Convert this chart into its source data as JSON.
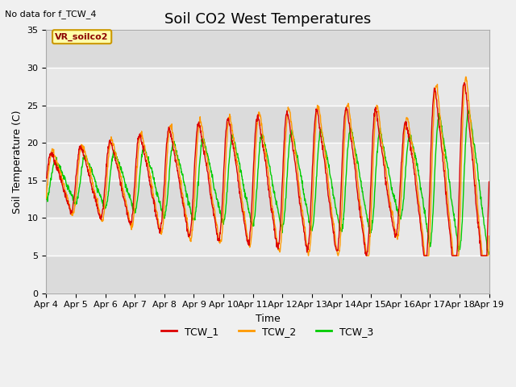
{
  "title": "Soil CO2 West Temperatures",
  "no_data_label": "No data for f_TCW_4",
  "vr_label": "VR_soilco2",
  "xlabel": "Time",
  "ylabel": "Soil Temperature (C)",
  "ylim": [
    0,
    35
  ],
  "x_tick_labels": [
    "Apr 4",
    "Apr 5",
    "Apr 6",
    "Apr 7",
    "Apr 8",
    "Apr 9",
    "Apr 10",
    "Apr 11",
    "Apr 12",
    "Apr 13",
    "Apr 14",
    "Apr 15",
    "Apr 16",
    "Apr 17",
    "Apr 18",
    "Apr 19"
  ],
  "line_colors": [
    "#dd0000",
    "#ff9900",
    "#00cc00"
  ],
  "line_labels": [
    "TCW_1",
    "TCW_2",
    "TCW_3"
  ],
  "fig_bg_color": "#f0f0f0",
  "plot_bg_color": "#e8e8e8",
  "stripe_color": "#d8d8d8",
  "title_fontsize": 13,
  "label_fontsize": 9,
  "tick_fontsize": 8,
  "legend_fontsize": 9
}
